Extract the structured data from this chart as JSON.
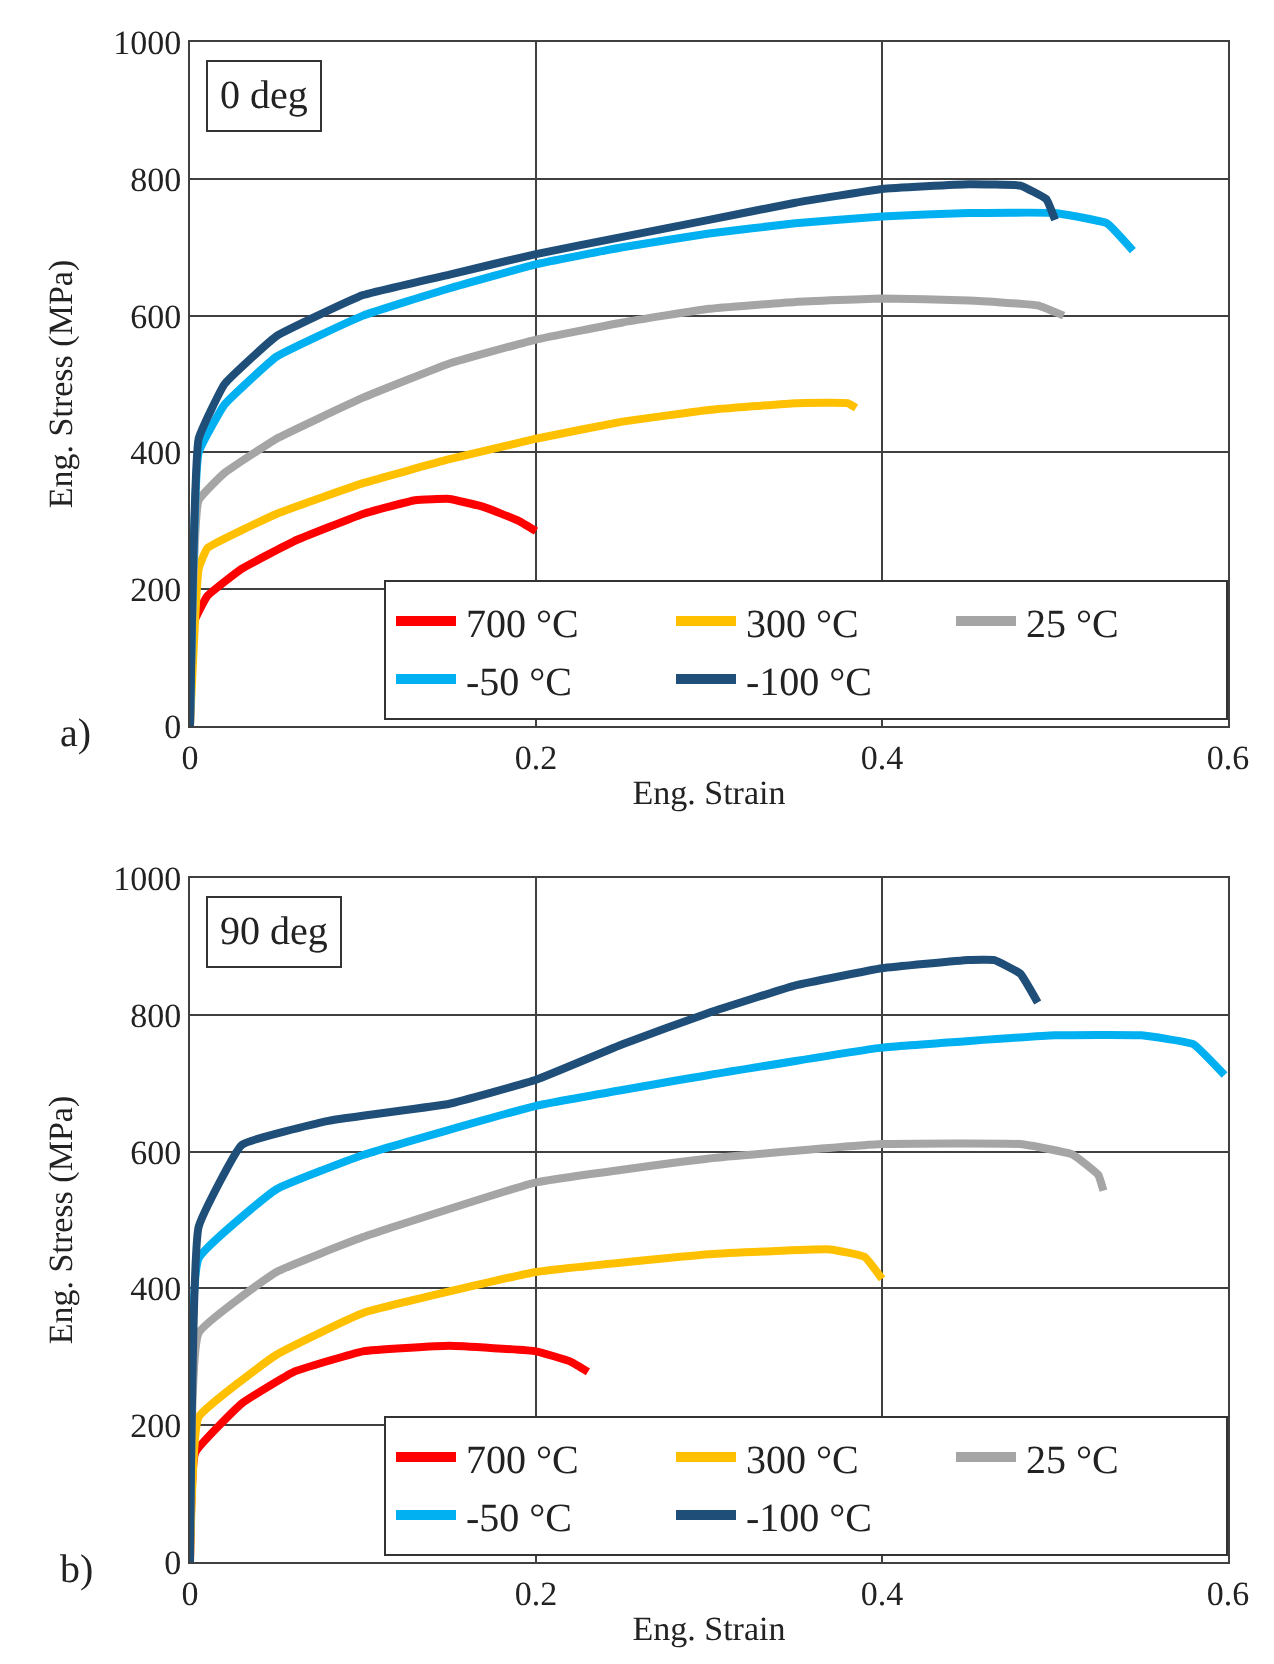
{
  "chart_data": [
    {
      "type": "line",
      "xlabel": "Eng. Strain",
      "ylabel": "Eng. Stress (MPa)",
      "annotations": [
        "0 deg",
        "a)"
      ],
      "xlim": [
        0,
        0.6
      ],
      "xticks": [
        0,
        0.2,
        0.4,
        0.6
      ],
      "ylim": [
        0,
        1000
      ],
      "yticks": [
        0,
        200,
        400,
        600,
        800,
        1000
      ],
      "grid": true,
      "legend": "bottom right",
      "marker": "none",
      "line_style": "solid",
      "series": [
        {
          "name": "700 °C",
          "color": "#ff0000",
          "x": [
            0,
            0.002,
            0.01,
            0.03,
            0.06,
            0.1,
            0.13,
            0.15,
            0.17,
            0.19,
            0.2
          ],
          "values": [
            0,
            150,
            190,
            230,
            270,
            310,
            330,
            332,
            320,
            300,
            285
          ]
        },
        {
          "name": "300 °C",
          "color": "#ffc000",
          "x": [
            0,
            0.005,
            0.01,
            0.05,
            0.1,
            0.15,
            0.2,
            0.25,
            0.3,
            0.35,
            0.38,
            0.385
          ],
          "values": [
            0,
            230,
            260,
            310,
            355,
            390,
            420,
            445,
            462,
            472,
            472,
            465
          ]
        },
        {
          "name": "25 °C",
          "color": "#a5a5a5",
          "x": [
            0,
            0.005,
            0.02,
            0.05,
            0.1,
            0.15,
            0.2,
            0.25,
            0.3,
            0.35,
            0.4,
            0.45,
            0.49,
            0.505
          ],
          "values": [
            0,
            330,
            370,
            420,
            480,
            530,
            565,
            590,
            610,
            620,
            625,
            622,
            615,
            600
          ]
        },
        {
          "name": "-50 °C",
          "color": "#00b0f0",
          "x": [
            0,
            0.005,
            0.02,
            0.05,
            0.1,
            0.15,
            0.2,
            0.25,
            0.3,
            0.35,
            0.4,
            0.45,
            0.5,
            0.53,
            0.545
          ],
          "values": [
            0,
            400,
            470,
            540,
            600,
            640,
            675,
            700,
            720,
            735,
            745,
            750,
            750,
            735,
            695
          ]
        },
        {
          "name": "-100 °C",
          "color": "#1f4e79",
          "x": [
            0,
            0.005,
            0.02,
            0.05,
            0.1,
            0.15,
            0.2,
            0.25,
            0.3,
            0.35,
            0.4,
            0.45,
            0.48,
            0.495,
            0.5
          ],
          "values": [
            0,
            420,
            500,
            570,
            630,
            660,
            690,
            715,
            740,
            765,
            785,
            792,
            790,
            770,
            740
          ]
        }
      ]
    },
    {
      "type": "line",
      "xlabel": "Eng. Strain",
      "ylabel": "Eng. Stress (MPa)",
      "annotations": [
        "90 deg",
        "b)"
      ],
      "xlim": [
        0,
        0.6
      ],
      "xticks": [
        0,
        0.2,
        0.4,
        0.6
      ],
      "ylim": [
        0,
        1000
      ],
      "yticks": [
        0,
        200,
        400,
        600,
        800,
        1000
      ],
      "grid": true,
      "legend": "bottom right",
      "marker": "none",
      "line_style": "solid",
      "series": [
        {
          "name": "700 °C",
          "color": "#ff0000",
          "x": [
            0,
            0.003,
            0.03,
            0.06,
            0.1,
            0.15,
            0.2,
            0.22,
            0.23
          ],
          "values": [
            0,
            160,
            232,
            278,
            308,
            316,
            308,
            293,
            278
          ]
        },
        {
          "name": "300 °C",
          "color": "#ffc000",
          "x": [
            0,
            0.005,
            0.05,
            0.1,
            0.2,
            0.3,
            0.37,
            0.39,
            0.4
          ],
          "values": [
            0,
            212,
            303,
            364,
            424,
            450,
            457,
            446,
            414
          ]
        },
        {
          "name": "25 °C",
          "color": "#a5a5a5",
          "x": [
            0,
            0.005,
            0.05,
            0.1,
            0.2,
            0.3,
            0.4,
            0.48,
            0.51,
            0.525,
            0.528
          ],
          "values": [
            0,
            335,
            424,
            475,
            555,
            590,
            611,
            611,
            596,
            566,
            543
          ]
        },
        {
          "name": "-50 °C",
          "color": "#00b0f0",
          "x": [
            0,
            0.005,
            0.05,
            0.1,
            0.2,
            0.3,
            0.4,
            0.5,
            0.55,
            0.58,
            0.598
          ],
          "values": [
            0,
            444,
            545,
            595,
            667,
            712,
            752,
            770,
            770,
            757,
            712
          ]
        },
        {
          "name": "-100 °C",
          "color": "#1f4e79",
          "x": [
            0,
            0.005,
            0.03,
            0.08,
            0.15,
            0.2,
            0.25,
            0.3,
            0.35,
            0.4,
            0.45,
            0.465,
            0.48,
            0.49
          ],
          "values": [
            0,
            490,
            610,
            645,
            670,
            705,
            757,
            803,
            843,
            868,
            880,
            880,
            860,
            818
          ]
        }
      ]
    }
  ]
}
